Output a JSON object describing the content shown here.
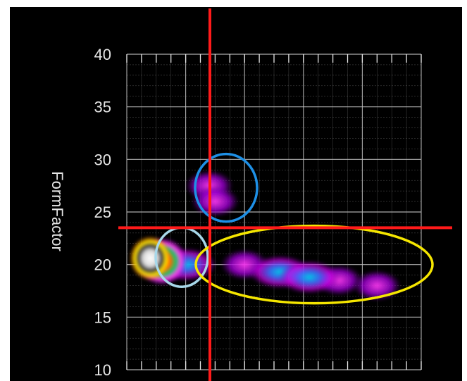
{
  "chart_data": {
    "type": "heatmap",
    "title": "",
    "xlabel": "",
    "ylabel": "FormFactor",
    "ylim": [
      10,
      40
    ],
    "y_ticks": [
      10,
      15,
      20,
      25,
      30,
      35,
      40
    ],
    "grid": true,
    "gate_lines": {
      "horizontal_y": 23.5,
      "color": "#ff1a1a"
    },
    "density_regions": [
      {
        "x": 0.08,
        "y": 20.6,
        "level": "peak"
      },
      {
        "x": 0.12,
        "y": 20.3,
        "level": "high"
      },
      {
        "x": 0.2,
        "y": 20.0,
        "level": "medium"
      },
      {
        "x": 0.28,
        "y": 27.5,
        "level": "low"
      },
      {
        "x": 0.3,
        "y": 26.0,
        "level": "low"
      },
      {
        "x": 0.4,
        "y": 20.0,
        "level": "low"
      },
      {
        "x": 0.52,
        "y": 19.3,
        "level": "medium"
      },
      {
        "x": 0.62,
        "y": 18.8,
        "level": "medium"
      },
      {
        "x": 0.72,
        "y": 18.5,
        "level": "low"
      },
      {
        "x": 0.85,
        "y": 18.0,
        "level": "low"
      }
    ],
    "annotations": [
      {
        "shape": "ellipse",
        "color": "#1e90e6",
        "center_y": 27.3
      },
      {
        "shape": "ellipse",
        "color": "#a8d8ea",
        "center_y": 20.7
      },
      {
        "shape": "ellipse",
        "color": "#f5e600",
        "center_y": 20.0
      }
    ],
    "colors": {
      "background": "#000000",
      "grid": "#bfbfbf",
      "density_low": "#9b00d3",
      "density_mid": "#ff3cf0",
      "density_high": "#00c8e6",
      "density_peak": "#ffffff"
    }
  }
}
